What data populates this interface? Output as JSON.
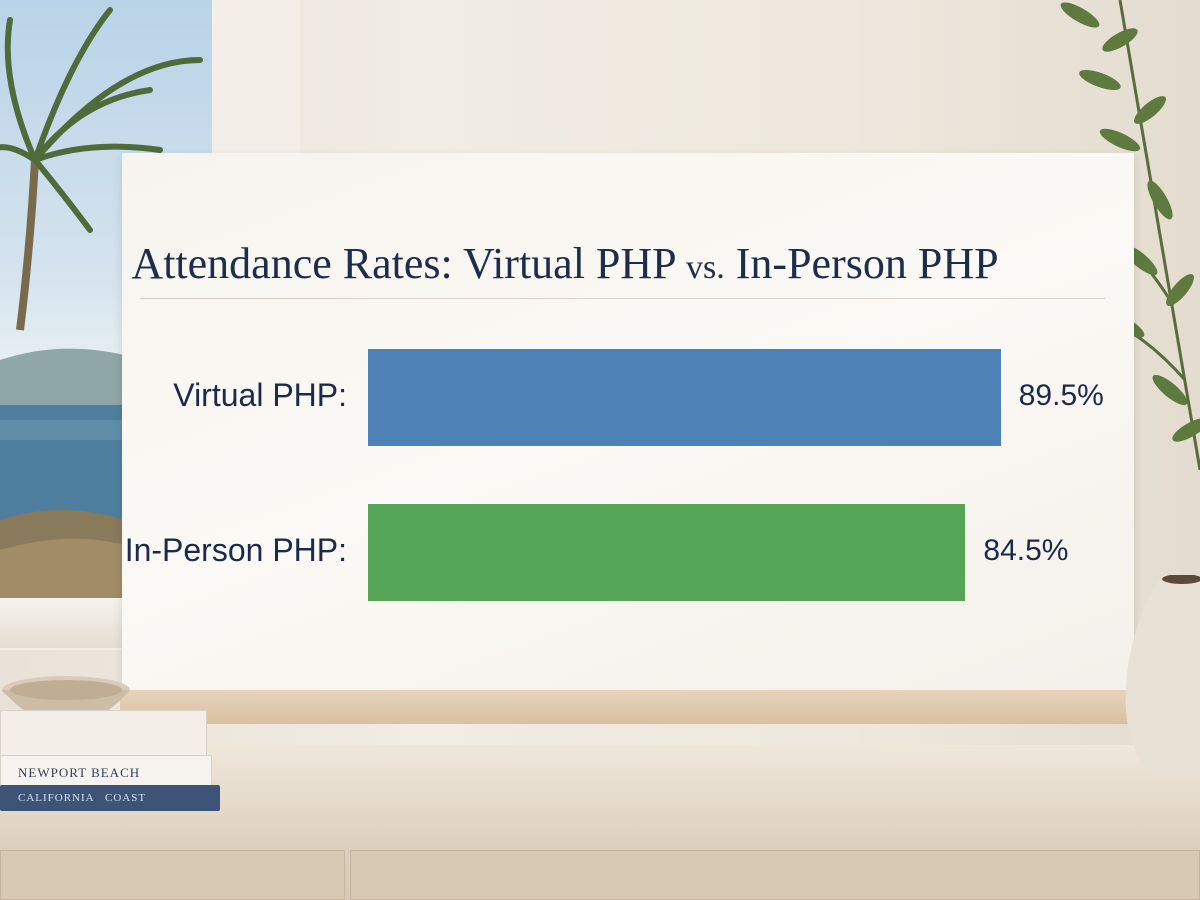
{
  "chart_data": {
    "type": "bar",
    "orientation": "horizontal",
    "title_main": "Attendance Rates: Virtual PHP ",
    "title_vs": "vs.",
    "title_end": " In-Person PHP",
    "categories": [
      "Virtual PHP:",
      "In-Person PHP:"
    ],
    "values": [
      89.5,
      84.5
    ],
    "value_labels": [
      "89.5%",
      "84.5%"
    ],
    "colors": [
      "#4e82b6",
      "#55a557"
    ],
    "xlim": [
      0,
      100
    ],
    "grid": false
  },
  "decor": {
    "book_top_label": "NEWPORT BEACH",
    "book_bottom_label_1": "CALIFORNIA",
    "book_bottom_label_2": "COAST"
  }
}
